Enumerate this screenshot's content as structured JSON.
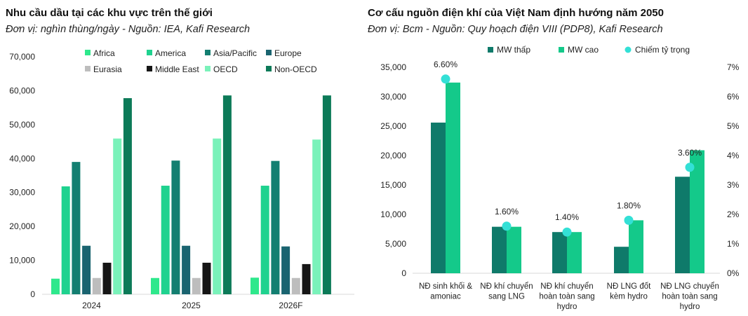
{
  "charts": [
    {
      "title": "Nhu cầu dầu tại các khu vực trên thế giới",
      "subtitle": "Đơn vị: nghìn thùng/ngày - Nguồn: IEA, Kafi Research"
    },
    {
      "title": "Cơ cấu nguồn điện khí của Việt Nam định hướng năm 2050",
      "subtitle": "Đơn vị: Bcm - Nguồn: Quy hoạch điện VIII (PDP8), Kafi Research"
    }
  ],
  "chart_data": [
    {
      "type": "bar",
      "categories": [
        "2024",
        "2025",
        "2026F"
      ],
      "series": [
        {
          "name": "Africa",
          "color": "#2ee88c",
          "values": [
            4600,
            4800,
            4900
          ]
        },
        {
          "name": "America",
          "color": "#1fd28f",
          "values": [
            31800,
            32000,
            32000
          ]
        },
        {
          "name": "Asia/Pacific",
          "color": "#137f71",
          "values": [
            39000,
            39400,
            39300
          ]
        },
        {
          "name": "Europe",
          "color": "#1a6470",
          "values": [
            14300,
            14300,
            14100
          ]
        },
        {
          "name": "Eurasia",
          "color": "#bdbdbd",
          "values": [
            4800,
            4800,
            4800
          ]
        },
        {
          "name": "Middle East",
          "color": "#161616",
          "values": [
            9300,
            9300,
            8900
          ]
        },
        {
          "name": "OECD",
          "color": "#7af2ba",
          "values": [
            45900,
            45900,
            45600
          ]
        },
        {
          "name": "Non-OECD",
          "color": "#0c7a58",
          "values": [
            57800,
            58600,
            58600
          ]
        }
      ],
      "yticks": [
        "0",
        "10,000",
        "20,000",
        "30,000",
        "40,000",
        "50,000",
        "60,000",
        "70,000"
      ],
      "ylim": [
        0,
        70000
      ],
      "grid": false,
      "legend": "top"
    },
    {
      "type": "bar",
      "categories": [
        [
          "NĐ sinh khối &",
          "amoniac"
        ],
        [
          "NĐ khí chuyển",
          "sang LNG"
        ],
        [
          "NĐ khí chuyển",
          "hoàn toàn sang",
          "hydro"
        ],
        [
          "NĐ LNG đốt",
          "kèm hydro"
        ],
        [
          "NĐ LNG chuyển",
          "hoàn toàn sang",
          "hydro"
        ]
      ],
      "series": [
        {
          "name": "MW thấp",
          "color": "#0f7a6a",
          "values": [
            25600,
            7900,
            7000,
            4500,
            16400
          ]
        },
        {
          "name": "MW cao",
          "color": "#14c98a",
          "values": [
            32400,
            7900,
            7000,
            9000,
            20900
          ]
        }
      ],
      "line_series": {
        "name": "Chiếm tỷ trọng",
        "color": "#33e0d6",
        "values": [
          6.6,
          1.6,
          1.4,
          1.8,
          3.6
        ],
        "labels": [
          "6.60%",
          "1.60%",
          "1.40%",
          "1.80%",
          "3.60%"
        ]
      },
      "yticks_left": [
        "0",
        "5,000",
        "10,000",
        "15,000",
        "20,000",
        "25,000",
        "30,000",
        "35,000"
      ],
      "yticks_right": [
        "0%",
        "1%",
        "2%",
        "3%",
        "4%",
        "5%",
        "6%",
        "7%"
      ],
      "ylim_left": [
        0,
        35000
      ],
      "ylim_right": [
        0,
        7
      ],
      "grid": false,
      "legend": "top"
    }
  ]
}
